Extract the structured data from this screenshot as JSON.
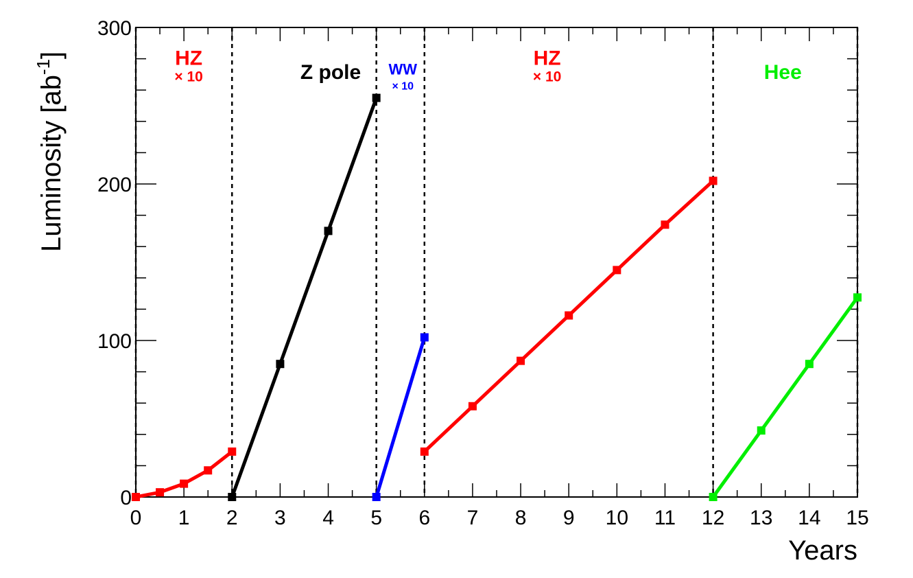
{
  "chart_data": {
    "type": "line",
    "xlabel": "Years",
    "ylabel": "Luminosity [ab",
    "ylabel_sup": "-1",
    "ylabel_close": "]",
    "xlim": [
      0,
      15
    ],
    "ylim": [
      0,
      300
    ],
    "x_ticks": [
      "0",
      "1",
      "2",
      "3",
      "4",
      "5",
      "6",
      "7",
      "8",
      "9",
      "10",
      "11",
      "12",
      "13",
      "14",
      "15"
    ],
    "y_ticks": [
      "0",
      "100",
      "200",
      "300"
    ],
    "boundaries": [
      0,
      2,
      5,
      6,
      12,
      15
    ],
    "series": [
      {
        "color": "#ff0000",
        "points": [
          [
            0,
            0
          ],
          [
            0.5,
            3
          ],
          [
            1,
            8.5
          ],
          [
            1.5,
            17
          ],
          [
            2,
            29
          ]
        ]
      },
      {
        "color": "#000000",
        "points": [
          [
            2,
            0
          ],
          [
            3,
            85
          ],
          [
            4,
            170
          ],
          [
            5,
            255
          ]
        ]
      },
      {
        "color": "#0000ff",
        "points": [
          [
            5,
            0
          ],
          [
            6,
            102
          ]
        ]
      },
      {
        "color": "#ff0000",
        "points": [
          [
            6,
            29
          ],
          [
            7,
            58
          ],
          [
            8,
            87
          ],
          [
            9,
            116
          ],
          [
            10,
            145
          ],
          [
            11,
            174
          ],
          [
            12,
            202
          ]
        ]
      },
      {
        "color": "#00ee00",
        "points": [
          [
            12,
            0
          ],
          [
            13,
            42.5
          ],
          [
            14,
            85
          ],
          [
            15,
            127.5
          ]
        ]
      }
    ],
    "annotations": [
      {
        "text": "HZ",
        "sub": "× 10",
        "color": "#ff0000",
        "x": 1.1,
        "y": 276,
        "size": 30
      },
      {
        "text": "Z pole",
        "sub": "",
        "color": "#000000",
        "x": 4.05,
        "y": 267,
        "size": 30
      },
      {
        "text": "WW",
        "sub": "× 10",
        "color": "#0000ff",
        "x": 5.55,
        "y": 270,
        "size": 22
      },
      {
        "text": "HZ",
        "sub": "× 10",
        "color": "#ff0000",
        "x": 8.55,
        "y": 276,
        "size": 30
      },
      {
        "text": "Hee",
        "sub": "",
        "color": "#00ee00",
        "x": 13.45,
        "y": 267,
        "size": 30
      }
    ]
  }
}
